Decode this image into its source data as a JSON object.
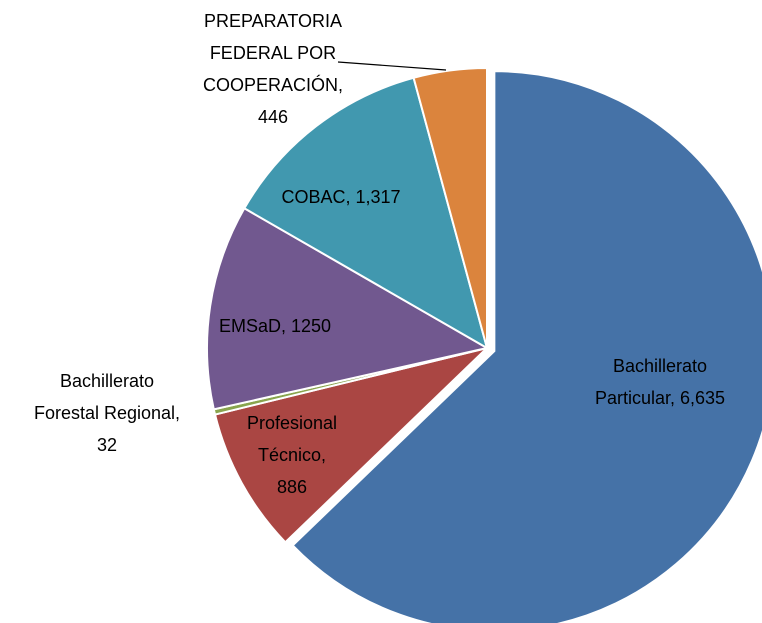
{
  "chart_data": {
    "type": "pie",
    "categories": [
      "Bachillerato Particular",
      "Profesional Técnico",
      "Bachillerato Forestal Regional",
      "EMSaD",
      "COBAC",
      "PREPARATORIA FEDERAL POR COOPERACIÓN"
    ],
    "values": [
      6635,
      886,
      32,
      1250,
      1317,
      446
    ],
    "value_labels": [
      "6,635",
      "886",
      "32",
      "1250",
      "1,317",
      "446"
    ],
    "colors": [
      "#4572a7",
      "#aa4643",
      "#89a54e",
      "#71588f",
      "#4198af",
      "#db843d"
    ]
  }
}
